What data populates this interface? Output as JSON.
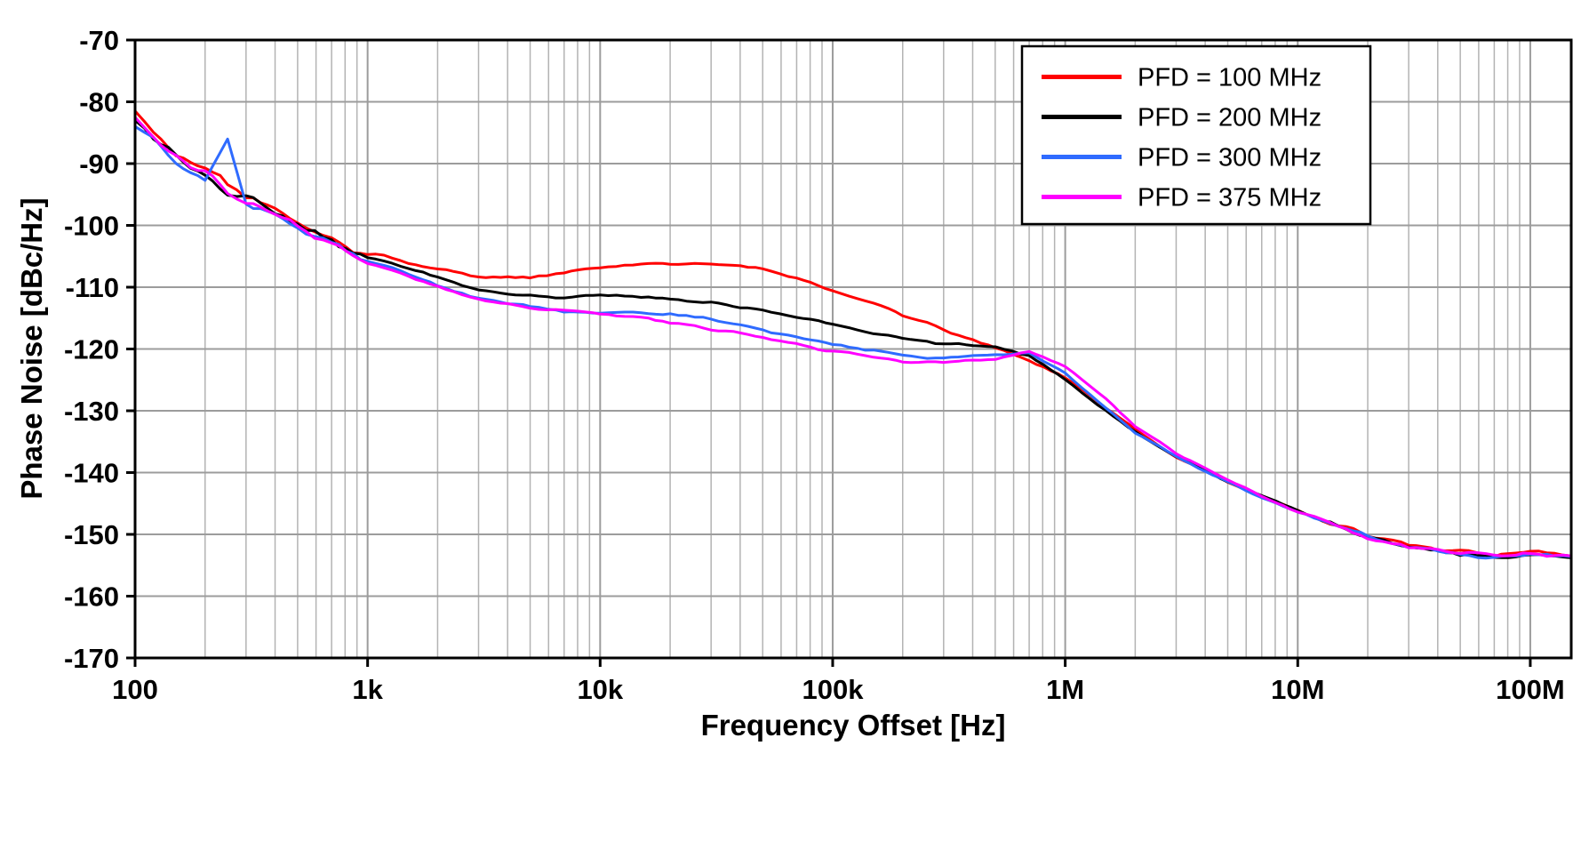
{
  "chart": {
    "xlabel": "Frequency Offset [Hz]",
    "ylabel": "Phase Noise [dBc/Hz]"
  },
  "style": {
    "background": "#ffffff",
    "grid_color": "#b3b3b3",
    "major_grid_color": "#9c9c9c",
    "axis_color": "#000000"
  },
  "chart_data": {
    "type": "line",
    "title": "",
    "xlabel": "Frequency Offset [Hz]",
    "ylabel": "Phase Noise [dBc/Hz]",
    "x_scale": "log",
    "xlim": [
      100,
      150000000
    ],
    "ylim": [
      -170,
      -70
    ],
    "ytick_step": 10,
    "yticks": [
      -70,
      -80,
      -90,
      -100,
      -110,
      -120,
      -130,
      -140,
      -150,
      -160,
      -170
    ],
    "xticks": [
      [
        100,
        "100"
      ],
      [
        1000,
        "1k"
      ],
      [
        10000,
        "10k"
      ],
      [
        100000,
        "100k"
      ],
      [
        1000000,
        "1M"
      ],
      [
        10000000,
        "10M"
      ],
      [
        100000000,
        "100M"
      ]
    ],
    "grid": true,
    "legend_position": "top-right",
    "x": [
      100,
      120,
      150,
      200,
      250,
      300,
      400,
      500,
      700,
      1000,
      1500,
      2000,
      3000,
      5000,
      7000,
      10000,
      15000,
      20000,
      30000,
      50000,
      70000,
      100000,
      150000,
      200000,
      300000,
      500000,
      700000,
      1000000,
      1500000,
      2000000,
      3000000,
      5000000,
      7000000,
      10000000,
      15000000,
      20000000,
      30000000,
      50000000,
      70000000,
      100000000,
      150000000
    ],
    "series": [
      {
        "name": "PFD = 100 MHz",
        "color": "#ff0000",
        "values": [
          -81.5,
          -85,
          -88.5,
          -90.5,
          -93.5,
          -95.5,
          -97.5,
          -99.5,
          -102.5,
          -104.5,
          -106,
          -107,
          -108.3,
          -108.4,
          -107.8,
          -106.8,
          -106.3,
          -106.2,
          -106.3,
          -107,
          -108.5,
          -110.5,
          -112.5,
          -114.5,
          -117,
          -119.8,
          -121.8,
          -124.5,
          -129.5,
          -133,
          -137.5,
          -141.5,
          -143.8,
          -146,
          -148.5,
          -150,
          -151.8,
          -153,
          -153.3,
          -152.8,
          -153.5
        ]
      },
      {
        "name": "PFD = 200 MHz",
        "color": "#000000",
        "values": [
          -83,
          -86.5,
          -89,
          -92.5,
          -94.5,
          -95.5,
          -98,
          -100,
          -102.5,
          -105,
          -107,
          -108.5,
          -110.5,
          -111.5,
          -111.8,
          -111.3,
          -111.5,
          -111.8,
          -112.5,
          -113.8,
          -114.8,
          -116,
          -117.5,
          -118.3,
          -119.2,
          -119.8,
          -121,
          -125,
          -130,
          -133.5,
          -137.5,
          -141.5,
          -143.8,
          -146.2,
          -148.6,
          -150.2,
          -152,
          -153.2,
          -153.5,
          -153.5,
          -153.8
        ]
      },
      {
        "name": "PFD = 300 MHz",
        "color": "#2f6bff",
        "values": [
          -84,
          -86,
          -89.5,
          -93,
          -86.5,
          -96.5,
          -98.5,
          -100,
          -103,
          -105.8,
          -108,
          -109.8,
          -111.8,
          -113.2,
          -113.8,
          -114,
          -114.2,
          -114.3,
          -115.3,
          -116.8,
          -118,
          -119.3,
          -120.3,
          -121,
          -121.5,
          -120.8,
          -120.8,
          -124,
          -129.5,
          -133.5,
          -137.5,
          -141.5,
          -144,
          -146.3,
          -148.7,
          -150.3,
          -152,
          -153.3,
          -153.6,
          -153.4,
          -153.6
        ]
      },
      {
        "name": "PFD = 375 MHz",
        "color": "#ff00ff",
        "values": [
          -82.5,
          -85.5,
          -89,
          -91.5,
          -94,
          -96,
          -98,
          -100.2,
          -103,
          -105.8,
          -108.2,
          -110,
          -112,
          -113.3,
          -113.8,
          -114.3,
          -115,
          -115.8,
          -116.8,
          -118,
          -119.3,
          -120.3,
          -121.3,
          -122,
          -122.3,
          -121.5,
          -120.5,
          -122.8,
          -128,
          -132.5,
          -136.8,
          -141.2,
          -143.8,
          -146.3,
          -148.8,
          -150.4,
          -152,
          -153,
          -153.3,
          -153.2,
          -153.5
        ]
      }
    ]
  }
}
